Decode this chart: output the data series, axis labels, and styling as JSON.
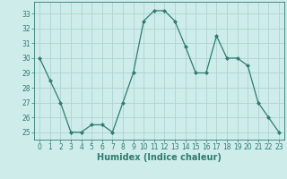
{
  "x": [
    0,
    1,
    2,
    3,
    4,
    5,
    6,
    7,
    8,
    9,
    10,
    11,
    12,
    13,
    14,
    15,
    16,
    17,
    18,
    19,
    20,
    21,
    22,
    23
  ],
  "y": [
    30,
    28.5,
    27,
    25,
    25,
    25.5,
    25.5,
    25,
    27,
    29,
    32.5,
    33.2,
    33.2,
    32.5,
    30.8,
    29,
    29,
    31.5,
    30,
    30,
    29.5,
    27,
    26,
    25
  ],
  "line_color": "#2e7d6e",
  "marker": "D",
  "markersize": 2.0,
  "linewidth": 0.9,
  "xlabel": "Humidex (Indice chaleur)",
  "xlim": [
    -0.5,
    23.5
  ],
  "ylim": [
    24.5,
    33.8
  ],
  "yticks": [
    25,
    26,
    27,
    28,
    29,
    30,
    31,
    32,
    33
  ],
  "xticks": [
    0,
    1,
    2,
    3,
    4,
    5,
    6,
    7,
    8,
    9,
    10,
    11,
    12,
    13,
    14,
    15,
    16,
    17,
    18,
    19,
    20,
    21,
    22,
    23
  ],
  "background_color": "#ceecea",
  "grid_color": "#aed4d0",
  "tick_fontsize": 5.5,
  "xlabel_fontsize": 7.0
}
